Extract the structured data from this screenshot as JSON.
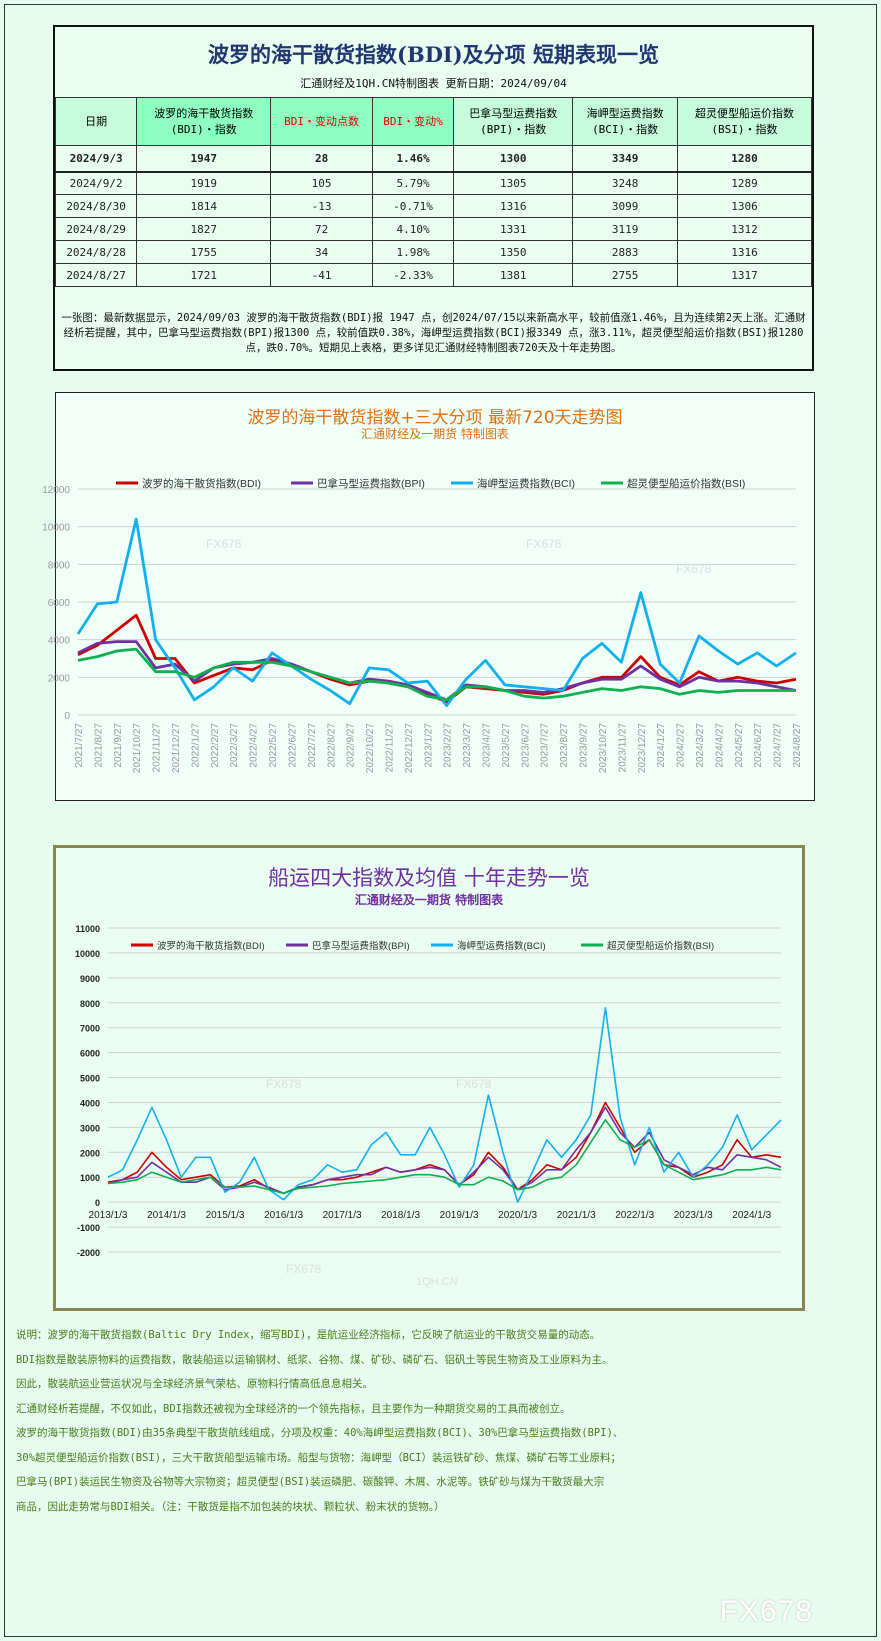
{
  "table": {
    "title": "波罗的海干散货指数(BDI)及分项 短期表现一览",
    "subtitle": "汇通财经及1QH.CN特制图表    更新日期：2024/09/04",
    "headers": [
      "日期",
      "波罗的海干散货指数\n(BDI)・指数",
      "BDI・变动点数",
      "BDI・变动%",
      "巴拿马型运费指数\n(BPI)・指数",
      "海岬型运费指数\n(BCI)・指数",
      "超灵便型船运价指数\n(BSI)・指数"
    ],
    "rows": [
      [
        "2024/9/3",
        "1947",
        "28",
        "1.46%",
        "1300",
        "3349",
        "1280"
      ],
      [
        "2024/9/2",
        "1919",
        "105",
        "5.79%",
        "1305",
        "3248",
        "1289"
      ],
      [
        "2024/8/30",
        "1814",
        "-13",
        "-0.71%",
        "1316",
        "3099",
        "1306"
      ],
      [
        "2024/8/29",
        "1827",
        "72",
        "4.10%",
        "1331",
        "3119",
        "1312"
      ],
      [
        "2024/8/28",
        "1755",
        "34",
        "1.98%",
        "1350",
        "2883",
        "1316"
      ],
      [
        "2024/8/27",
        "1721",
        "-41",
        "-2.33%",
        "1381",
        "2755",
        "1317"
      ]
    ],
    "summary": "一张图：最新数据显示，2024/09/03 波罗的海干散货指数(BDI)报 1947 点，创2024/07/15以来新高水平，较前值涨1.46%，且为连续第2天上涨。汇通财经析若提醒，其中，巴拿马型运费指数(BPI)报1300 点，较前值跌0.38%，海岬型运费指数(BCI)报3349 点，涨3.11%，超灵便型船运价指数(BSI)报1280 点，跌0.70%。短期见上表格，更多详见汇通财经特制图表720天及十年走势图。"
  },
  "chart_data": [
    {
      "type": "line",
      "title": "波罗的海干散货指数+三大分项  最新720天走势图",
      "subtitle": "汇通财经及一期货  特制图表",
      "ylim": [
        0,
        12000
      ],
      "yticks": [
        0,
        2000,
        4000,
        6000,
        8000,
        10000,
        12000
      ],
      "grid": true,
      "legend": "top",
      "x": [
        "2021/7/27",
        "2021/8/27",
        "2021/9/27",
        "2021/10/27",
        "2021/11/27",
        "2021/12/27",
        "2022/1/27",
        "2022/2/27",
        "2022/3/27",
        "2022/4/27",
        "2022/5/27",
        "2022/6/27",
        "2022/7/27",
        "2022/8/27",
        "2022/9/27",
        "2022/10/27",
        "2022/11/27",
        "2022/12/27",
        "2023/1/27",
        "2023/2/27",
        "2023/3/27",
        "2023/4/27",
        "2023/5/27",
        "2023/6/27",
        "2023/7/27",
        "2023/8/27",
        "2023/9/27",
        "2023/10/27",
        "2023/11/27",
        "2023/12/27",
        "2024/1/27",
        "2024/2/27",
        "2024/3/27",
        "2024/4/27",
        "2024/5/27",
        "2024/6/27",
        "2024/7/27",
        "2024/8/27"
      ],
      "series": [
        {
          "name": "波罗的海干散货指数(BDI)",
          "color": "#cc0000",
          "values": [
            3200,
            3700,
            4500,
            5300,
            3000,
            3000,
            1700,
            2100,
            2500,
            2400,
            2900,
            2700,
            2300,
            1900,
            1600,
            1800,
            1700,
            1500,
            1100,
            700,
            1500,
            1400,
            1300,
            1200,
            1100,
            1300,
            1700,
            2000,
            2000,
            3100,
            2000,
            1600,
            2300,
            1800,
            2000,
            1800,
            1700,
            1900
          ]
        },
        {
          "name": "巴拿马型运费指数(BPI)",
          "color": "#7030a0",
          "values": [
            3300,
            3800,
            3900,
            3900,
            2500,
            2700,
            1800,
            2500,
            2700,
            2800,
            3000,
            2700,
            2300,
            2000,
            1700,
            1900,
            1800,
            1600,
            1200,
            800,
            1600,
            1500,
            1300,
            1300,
            1200,
            1400,
            1700,
            1900,
            1900,
            2600,
            1900,
            1500,
            2000,
            1800,
            1800,
            1700,
            1500,
            1300
          ]
        },
        {
          "name": "海岬型运费指数(BCI)",
          "color": "#12b0ee",
          "values": [
            4300,
            5900,
            6000,
            10400,
            4000,
            2500,
            800,
            1500,
            2500,
            1800,
            3300,
            2600,
            1900,
            1300,
            600,
            2500,
            2400,
            1700,
            1800,
            500,
            1900,
            2900,
            1600,
            1500,
            1400,
            1300,
            3000,
            3800,
            2800,
            6500,
            2700,
            1700,
            4200,
            3400,
            2700,
            3300,
            2600,
            3300
          ]
        },
        {
          "name": "超灵便型船运价指数(BSI)",
          "color": "#10b050",
          "values": [
            2900,
            3100,
            3400,
            3500,
            2300,
            2300,
            2000,
            2500,
            2800,
            2800,
            2800,
            2600,
            2300,
            2000,
            1700,
            1800,
            1700,
            1500,
            1000,
            800,
            1500,
            1500,
            1300,
            1000,
            900,
            1000,
            1200,
            1400,
            1300,
            1500,
            1400,
            1100,
            1300,
            1200,
            1300,
            1300,
            1300,
            1300
          ]
        }
      ]
    },
    {
      "type": "line",
      "title": "船运四大指数及均值 十年走势一览",
      "subtitle": "汇通财经及一期货 特制图表",
      "ylim": [
        -2000,
        11000
      ],
      "yticks": [
        -2000,
        -1000,
        0,
        1000,
        2000,
        3000,
        4000,
        5000,
        6000,
        7000,
        8000,
        9000,
        10000,
        11000
      ],
      "grid": true,
      "legend": "top",
      "xticks": [
        "2013/1/3",
        "2014/1/3",
        "2015/1/3",
        "2016/1/3",
        "2017/1/3",
        "2018/1/3",
        "2019/1/3",
        "2020/1/3",
        "2021/1/3",
        "2022/1/3",
        "2023/1/3",
        "2024/1/3"
      ],
      "series": [
        {
          "name": "波罗的海干散货指数(BDI)",
          "color": "#cc0000",
          "values": [
            800,
            900,
            1200,
            2000,
            1400,
            900,
            1000,
            1100,
            600,
            650,
            900,
            550,
            350,
            600,
            700,
            900,
            900,
            1000,
            1200,
            1400,
            1200,
            1300,
            1500,
            1300,
            700,
            1100,
            2000,
            1400,
            500,
            900,
            1500,
            1300,
            1800,
            2800,
            4000,
            3000,
            2000,
            2500,
            1500,
            1400,
            1000,
            1200,
            1500,
            2500,
            1800,
            1900,
            1800
          ]
        },
        {
          "name": "巴拿马型运费指数(BPI)",
          "color": "#7030a0",
          "values": [
            750,
            900,
            1000,
            1600,
            1200,
            800,
            800,
            1000,
            500,
            600,
            800,
            600,
            350,
            600,
            700,
            900,
            1000,
            1100,
            1100,
            1400,
            1200,
            1300,
            1400,
            1300,
            700,
            1200,
            1800,
            1300,
            500,
            800,
            1300,
            1300,
            2100,
            2800,
            3800,
            2800,
            2200,
            2800,
            1700,
            1400,
            1100,
            1400,
            1300,
            1900,
            1800,
            1700,
            1400
          ]
        },
        {
          "name": "海岬型运费指数(BCI)",
          "color": "#12b0ee",
          "values": [
            1000,
            1300,
            2500,
            3800,
            2500,
            1000,
            1800,
            1800,
            400,
            800,
            1800,
            500,
            100,
            700,
            900,
            1500,
            1200,
            1300,
            2300,
            2800,
            1900,
            1900,
            3000,
            1900,
            600,
            1500,
            4300,
            2000,
            0,
            1200,
            2500,
            1800,
            2500,
            3500,
            7800,
            3400,
            1500,
            3000,
            1200,
            2000,
            1000,
            1500,
            2200,
            3500,
            2100,
            2700,
            3300
          ]
        },
        {
          "name": "超灵便型船运价指数(BSI)",
          "color": "#10b050",
          "values": [
            750,
            800,
            900,
            1200,
            1000,
            800,
            900,
            1000,
            600,
            600,
            650,
            500,
            350,
            550,
            600,
            650,
            750,
            800,
            850,
            900,
            1000,
            1100,
            1100,
            1000,
            700,
            700,
            1000,
            850,
            500,
            600,
            900,
            1000,
            1500,
            2400,
            3300,
            2500,
            2200,
            2500,
            1500,
            1200,
            900,
            1000,
            1100,
            1300,
            1300,
            1400,
            1300
          ]
        }
      ]
    }
  ],
  "watermarks": [
    "FX678",
    "1QH.CN"
  ],
  "notes": [
    "说明：波罗的海干散货指数(Baltic Dry Index，缩写BDI)，是航运业经济指标，它反映了航运业的干散货交易量的动态。",
    "BDI指数是散装原物料的运费指数，散装船运以运输钢材、纸浆、谷物、煤、矿砂、磷矿石、铝矾土等民生物资及工业原料为主。",
    "因此，散装航运业营运状况与全球经济景气荣枯、原物料行情高低息息相关。",
    "汇通财经析若提醒，不仅如此，BDI指数还被视为全球经济的一个领先指标，且主要作为一种期货交易的工具而被创立。",
    "波罗的海干散货指数(BDI)由35条典型干散货航线组成，分项及权重：40%海岬型运费指数(BCI)、30%巴拿马型运费指数(BPI)、",
    "30%超灵便型船运价指数(BSI)，三大干散货船型运输市场。船型与货物：海岬型（BCI）装运铁矿砂、焦煤、磷矿石等工业原料；",
    "巴拿马(BPI)装运民生物资及谷物等大宗物资；超灵便型(BSI)装运磷肥、碳酸钾、木屑、水泥等。铁矿砂与煤为干散货最大宗",
    "商品，因此走势常与BDI相关。（注：干散货是指不加包装的块状、颗粒状、粉末状的货物。）"
  ]
}
